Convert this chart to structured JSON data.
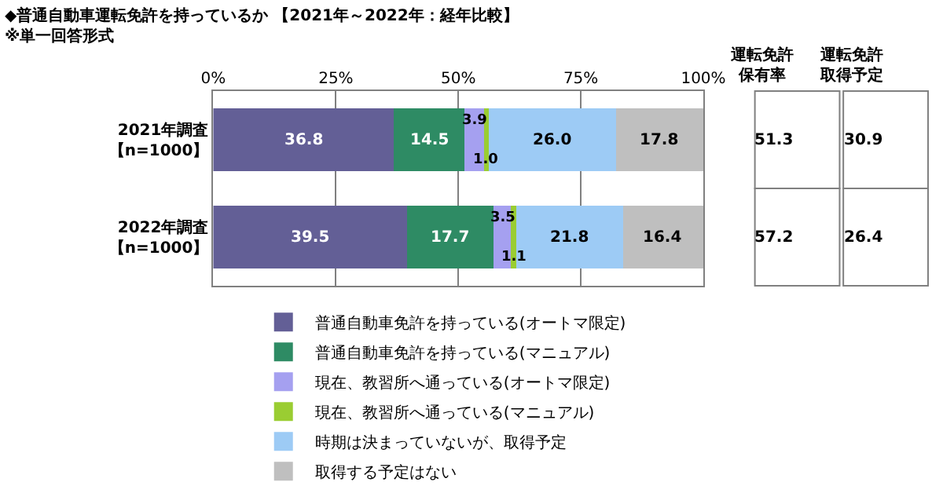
{
  "chart_data": {
    "type": "bar",
    "orientation": "horizontal",
    "stacked": true,
    "title": "◆普通自動車運転免許を持っているか 【2021年～2022年：経年比較】",
    "subtitle": "※単一回答形式",
    "categories": [
      "2021年調査【n=1000】",
      "2022年調査【n=1000】"
    ],
    "series": [
      {
        "name": "普通自動車免許を持っている(オートマ限定)",
        "color": "#635f96",
        "values": [
          36.8,
          39.5
        ],
        "value_labels": [
          "36.8",
          "39.5"
        ]
      },
      {
        "name": "普通自動車免許を持っている(マニュアル)",
        "color": "#2e8b64",
        "values": [
          14.5,
          17.7
        ],
        "value_labels": [
          "14.5",
          "17.7"
        ]
      },
      {
        "name": "現在、教習所へ通っている(オートマ限定)",
        "color": "#a5a0f0",
        "values": [
          3.9,
          3.5
        ],
        "value_labels": [
          "3.9",
          "3.5"
        ]
      },
      {
        "name": "現在、教習所へ通っている(マニュアル)",
        "color": "#9acd32",
        "values": [
          1.0,
          1.1
        ],
        "value_labels": [
          "1.0",
          "1.1"
        ]
      },
      {
        "name": "時期は決まっていないが、取得予定",
        "color": "#9dcbf5",
        "values": [
          26.0,
          21.8
        ],
        "value_labels": [
          "26.0",
          "21.8"
        ]
      },
      {
        "name": "取得する予定はない",
        "color": "#bfbfbf",
        "values": [
          17.8,
          16.4
        ],
        "value_labels": [
          "17.8",
          "16.4"
        ]
      }
    ],
    "xlim": [
      0,
      100
    ],
    "xticks": [
      {
        "value": 0,
        "label": "0%"
      },
      {
        "value": 25,
        "label": "25%"
      },
      {
        "value": 50,
        "label": "50%"
      },
      {
        "value": 75,
        "label": "75%"
      },
      {
        "value": 100,
        "label": "100%"
      }
    ],
    "grid": "x",
    "legend": "bottom",
    "annotations": [
      "運転免許保有率",
      "運転免許取得予定",
      "51.3",
      "30.9",
      "57.2",
      "26.4"
    ]
  }
}
